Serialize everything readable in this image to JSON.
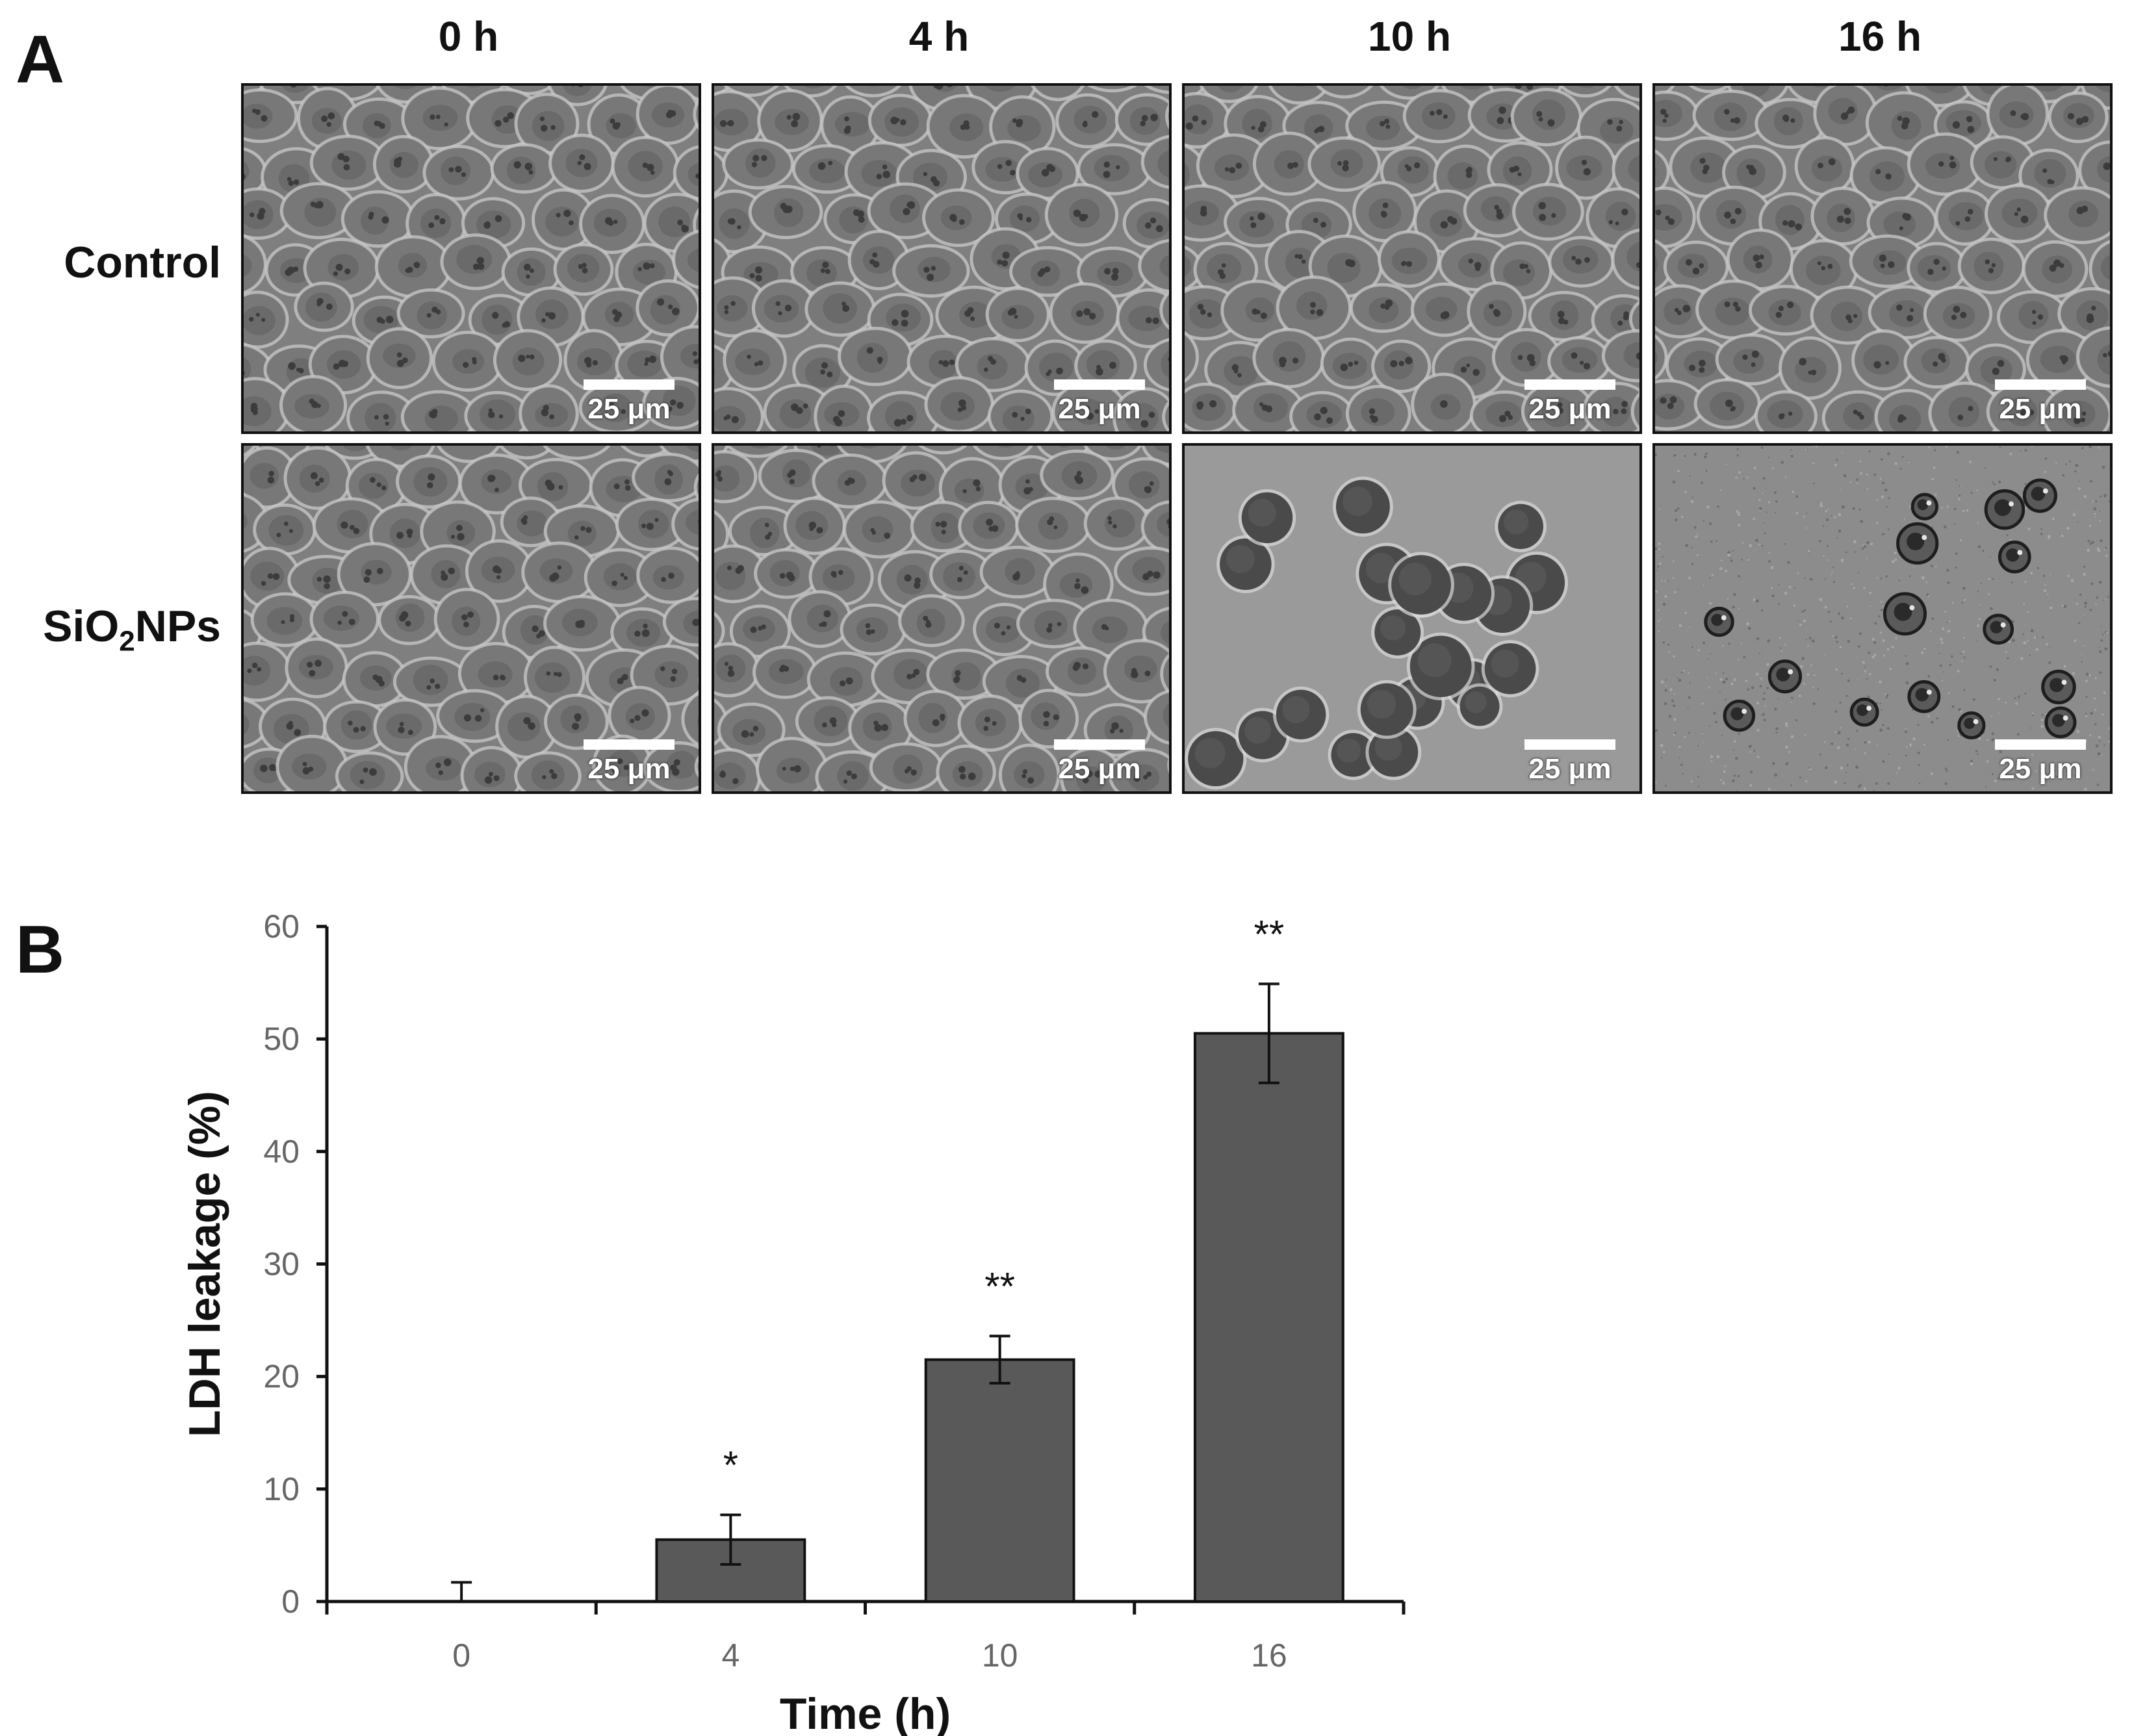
{
  "panel_a": {
    "letter": "A",
    "columns": [
      "0 h",
      "4 h",
      "10 h",
      "16 h"
    ],
    "rows": [
      {
        "label": "Control",
        "label_sub": "",
        "label_tail": ""
      },
      {
        "label": "SiO",
        "label_sub": "2",
        "label_tail": "NPs"
      }
    ],
    "scale_bar_label": "25 μm",
    "image_states": [
      [
        "confluent",
        "confluent",
        "confluent",
        "confluent"
      ],
      [
        "confluent",
        "confluent",
        "rounded",
        "detached"
      ]
    ]
  },
  "panel_b": {
    "letter": "B"
  },
  "chart_data": {
    "type": "bar",
    "categories": [
      "0",
      "4",
      "10",
      "16"
    ],
    "values": [
      0,
      5.5,
      21.5,
      50.5
    ],
    "error": [
      1.7,
      2.2,
      2.1,
      4.4
    ],
    "significance": [
      "",
      "*",
      "**",
      "**"
    ],
    "xlabel": "Time (h)",
    "ylabel": "LDH leakage (%)",
    "ylim": [
      0,
      60
    ],
    "yticks": [
      0,
      10,
      20,
      30,
      40,
      50,
      60
    ],
    "bar_color": "#595959",
    "grid": false
  }
}
